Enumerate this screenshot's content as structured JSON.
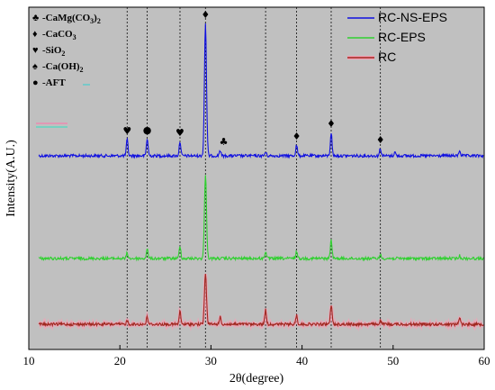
{
  "chart_data": {
    "type": "line",
    "xlabel": "2θ(degree)",
    "ylabel": "Intensity(A.U.)",
    "xlim": [
      10,
      60
    ],
    "xticks": [
      10,
      20,
      30,
      40,
      50,
      60
    ],
    "background": "#c0c0c0",
    "reference_lines_x": [
      20.8,
      23.0,
      26.6,
      29.4,
      36.0,
      39.4,
      43.2,
      48.6
    ],
    "legend": {
      "placement": "top-right"
    },
    "phase_key": [
      {
        "symbol": "♣",
        "base": "-CaMg(CO",
        "sub1": "3",
        "mid": ")",
        "sub2": "2"
      },
      {
        "symbol": "♦",
        "base": "-CaCO",
        "sub1": "3",
        "mid": "",
        "sub2": ""
      },
      {
        "symbol": "♥",
        "base": "-SiO",
        "sub1": "2",
        "mid": "",
        "sub2": ""
      },
      {
        "symbol": "♠",
        "base": "-Ca(OH)",
        "sub1": "2",
        "mid": "",
        "sub2": ""
      },
      {
        "symbol": "●",
        "base": "-AFT",
        "sub1": "",
        "mid": "",
        "sub2": ""
      }
    ],
    "peak_markers": [
      {
        "x": 20.8,
        "symbol": "♥"
      },
      {
        "x": 23.0,
        "symbol": "●"
      },
      {
        "x": 26.6,
        "symbol": "♥"
      },
      {
        "x": 29.4,
        "symbol": "♦"
      },
      {
        "x": 31.0,
        "symbol": "♣"
      },
      {
        "x": 39.4,
        "symbol": "♦"
      },
      {
        "x": 43.2,
        "symbol": "♦"
      },
      {
        "x": 48.6,
        "symbol": "♦"
      }
    ],
    "series": [
      {
        "name": "RC-NS-EPS",
        "color": "#1010e0",
        "baseline": 173,
        "peaks": [
          [
            20.8,
            18
          ],
          [
            23.0,
            19
          ],
          [
            26.6,
            16
          ],
          [
            29.4,
            147
          ],
          [
            31.0,
            6
          ],
          [
            36.0,
            4
          ],
          [
            39.4,
            12
          ],
          [
            43.2,
            26
          ],
          [
            48.6,
            8
          ],
          [
            50.2,
            4
          ],
          [
            57.3,
            6
          ]
        ]
      },
      {
        "name": "RC-EPS",
        "color": "#30d030",
        "baseline": 287,
        "peaks": [
          [
            20.8,
            6
          ],
          [
            23.0,
            10
          ],
          [
            26.6,
            14
          ],
          [
            29.4,
            94
          ],
          [
            36.0,
            8
          ],
          [
            39.4,
            8
          ],
          [
            43.2,
            21
          ],
          [
            48.6,
            4
          ],
          [
            57.3,
            3
          ]
        ]
      },
      {
        "name": "RC",
        "color": "#a02820",
        "baseline": 360,
        "peaks": [
          [
            20.8,
            4
          ],
          [
            23.0,
            8
          ],
          [
            26.6,
            14
          ],
          [
            29.4,
            56
          ],
          [
            31.0,
            8
          ],
          [
            36.0,
            16
          ],
          [
            39.4,
            10
          ],
          [
            43.2,
            22
          ],
          [
            48.6,
            4
          ],
          [
            57.3,
            8
          ]
        ]
      }
    ]
  }
}
